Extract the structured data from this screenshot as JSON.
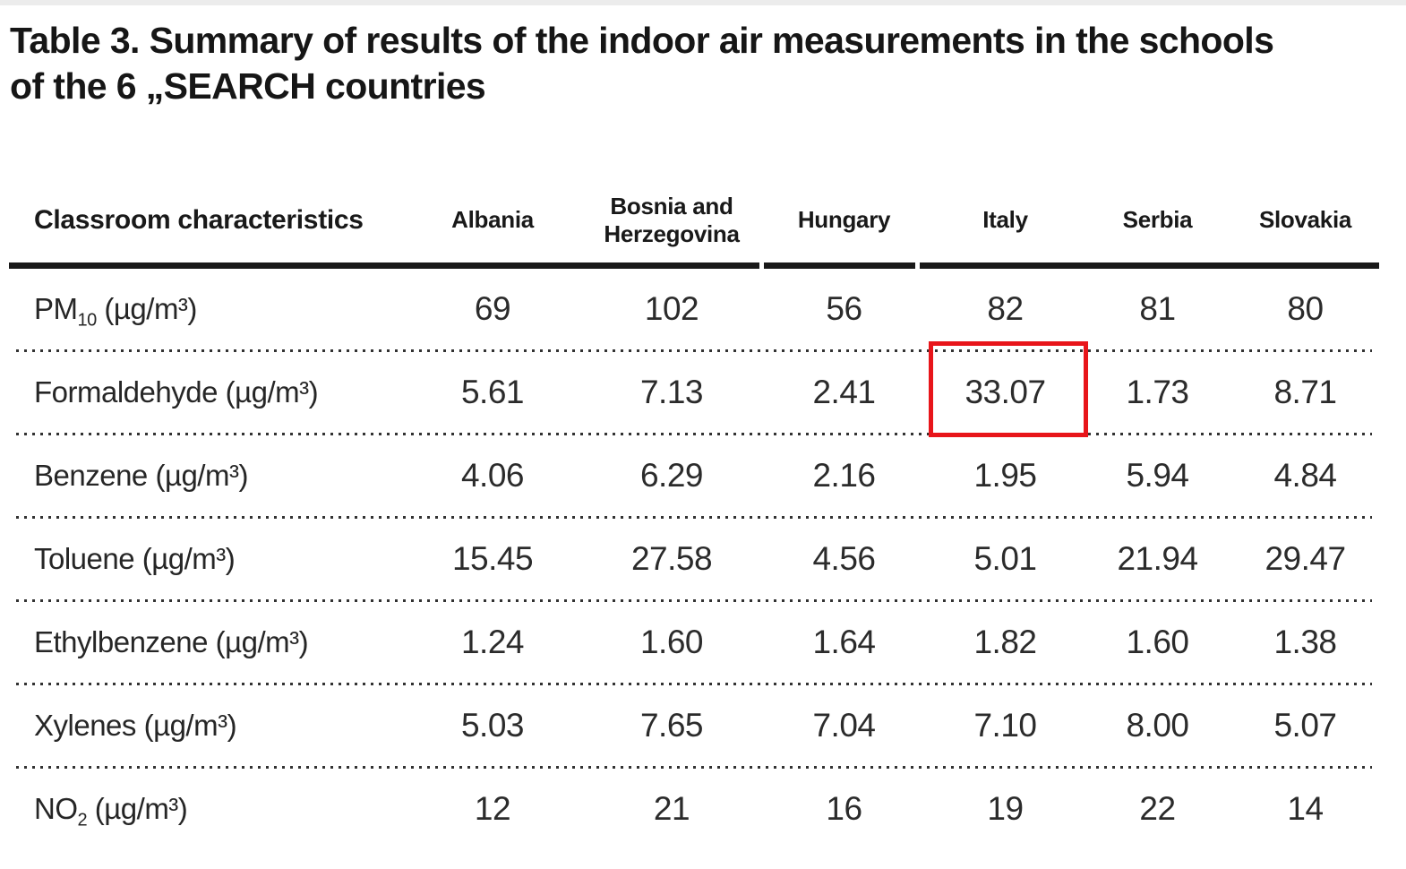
{
  "title": {
    "line1": "Table 3. Summary of results of the indoor air measurements in the schools",
    "line2": "of the 6 „SEARCH countries"
  },
  "table": {
    "columns": [
      "Classroom characteristics",
      "Albania",
      "Bosnia and Herzegovina",
      "Hungary",
      "Italy",
      "Serbia",
      "Slovakia"
    ],
    "rows": [
      {
        "prefix": "PM",
        "sub": "10",
        "suffix": " (µg/m³)",
        "values": [
          "69",
          "102",
          "56",
          "82",
          "81",
          "80"
        ]
      },
      {
        "prefix": "Formaldehyde",
        "sub": "",
        "suffix": " (µg/m³)",
        "values": [
          "5.61",
          "7.13",
          "2.41",
          "33.07",
          "1.73",
          "8.71"
        ]
      },
      {
        "prefix": "Benzene",
        "sub": "",
        "suffix": " (µg/m³)",
        "values": [
          "4.06",
          "6.29",
          "2.16",
          "1.95",
          "5.94",
          "4.84"
        ]
      },
      {
        "prefix": "Toluene",
        "sub": "",
        "suffix": " (µg/m³)",
        "values": [
          "15.45",
          "27.58",
          "4.56",
          "5.01",
          "21.94",
          "29.47"
        ]
      },
      {
        "prefix": "Ethylbenzene",
        "sub": "",
        "suffix": " (µg/m³)",
        "values": [
          "1.24",
          "1.60",
          "1.64",
          "1.82",
          "1.60",
          "1.38"
        ]
      },
      {
        "prefix": "Xylenes",
        "sub": "",
        "suffix": " (µg/m³)",
        "values": [
          "5.03",
          "7.65",
          "7.04",
          "7.10",
          "8.00",
          "5.07"
        ]
      },
      {
        "prefix": "NO",
        "sub": "2",
        "suffix": " (µg/m³)",
        "values": [
          "12",
          "21",
          "16",
          "19",
          "22",
          "14"
        ]
      }
    ],
    "highlight": {
      "row_label": "Formaldehyde",
      "column": "Italy",
      "value": "33.07",
      "color": "#e8151a"
    }
  },
  "colors": {
    "text": "#1e1e1e",
    "header_rule": "#191919",
    "dotted_separator": "#323232",
    "highlight_border": "#e8151a",
    "top_strip": "#ececec",
    "background": "#ffffff"
  }
}
